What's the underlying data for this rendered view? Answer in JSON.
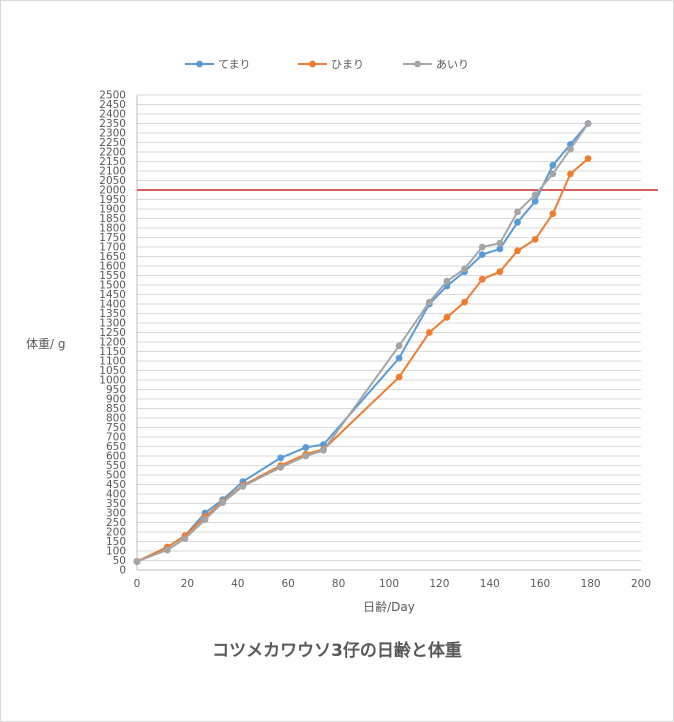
{
  "chart_data": {
    "type": "line",
    "title": "コツメカワウソ3仔の日齢と体重",
    "xlabel": "日齢/Day",
    "ylabel": "体重/ g",
    "xlim": [
      0,
      200
    ],
    "ylim": [
      0,
      2500
    ],
    "x_ticks": [
      0,
      20,
      40,
      60,
      80,
      100,
      120,
      140,
      160,
      180,
      200
    ],
    "y_tick_step": 50,
    "grid": true,
    "legend_position": "top",
    "reference_line": {
      "y": 2000,
      "color": "#c00000"
    },
    "series": [
      {
        "name": "てまり",
        "color": "#5b9bd5",
        "points": [
          [
            0,
            45
          ],
          [
            12,
            120
          ],
          [
            19,
            180
          ],
          [
            27,
            300
          ],
          [
            34,
            370
          ],
          [
            42,
            465
          ],
          [
            57,
            590
          ],
          [
            67,
            645
          ],
          [
            74,
            660
          ],
          [
            104,
            1115
          ],
          [
            116,
            1400
          ],
          [
            123,
            1495
          ],
          [
            130,
            1570
          ],
          [
            137,
            1660
          ],
          [
            144,
            1690
          ],
          [
            151,
            1830
          ],
          [
            158,
            1940
          ],
          [
            165,
            2130
          ],
          [
            172,
            2240
          ],
          [
            179,
            2350
          ]
        ]
      },
      {
        "name": "ひまり",
        "color": "#ed7d31",
        "points": [
          [
            0,
            45
          ],
          [
            12,
            120
          ],
          [
            19,
            180
          ],
          [
            27,
            280
          ],
          [
            34,
            360
          ],
          [
            42,
            445
          ],
          [
            57,
            550
          ],
          [
            67,
            610
          ],
          [
            74,
            635
          ],
          [
            104,
            1015
          ],
          [
            116,
            1250
          ],
          [
            123,
            1330
          ],
          [
            130,
            1410
          ],
          [
            137,
            1530
          ],
          [
            144,
            1570
          ],
          [
            151,
            1680
          ],
          [
            158,
            1740
          ],
          [
            165,
            1875
          ],
          [
            172,
            2085
          ],
          [
            179,
            2165
          ]
        ]
      },
      {
        "name": "あいり",
        "color": "#a5a5a5",
        "points": [
          [
            0,
            45
          ],
          [
            12,
            105
          ],
          [
            19,
            165
          ],
          [
            27,
            265
          ],
          [
            34,
            355
          ],
          [
            42,
            440
          ],
          [
            57,
            540
          ],
          [
            67,
            600
          ],
          [
            74,
            630
          ],
          [
            104,
            1180
          ],
          [
            116,
            1410
          ],
          [
            123,
            1520
          ],
          [
            130,
            1585
          ],
          [
            137,
            1700
          ],
          [
            144,
            1720
          ],
          [
            151,
            1885
          ],
          [
            158,
            1975
          ],
          [
            165,
            2085
          ],
          [
            172,
            2215
          ],
          [
            179,
            2350
          ]
        ]
      }
    ]
  }
}
